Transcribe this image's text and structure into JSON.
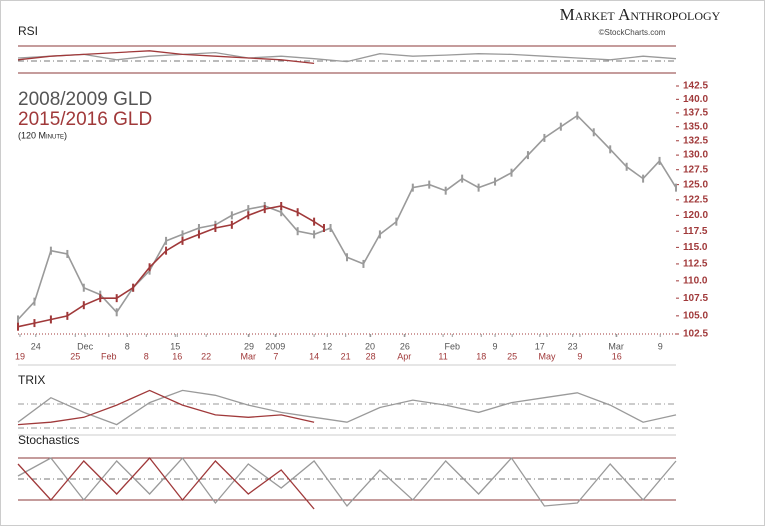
{
  "header": {
    "brand": "Market Anthropology",
    "credit": "©StockCharts.com"
  },
  "chart_data": [
    {
      "type": "line",
      "title": "2008/2009 GLD",
      "subtitle": "2015/2016 GLD",
      "note": "(120 Minute)",
      "log": true,
      "ylim": [
        102.5,
        142.5
      ],
      "yticks": [
        102.5,
        {
          "value": 105,
          "label": "105.0"
        },
        107.5,
        {
          "value": 110,
          "label": "110.0"
        },
        112.5,
        {
          "value": 115,
          "label": "115.0"
        },
        117.5,
        {
          "value": 120,
          "label": "120.0"
        },
        122.5,
        {
          "value": 125,
          "label": "125.0"
        },
        127.5,
        {
          "value": 130,
          "label": "130.0"
        },
        132.5,
        {
          "value": 135,
          "label": "135.0"
        },
        137.5,
        {
          "value": 140,
          "label": "140.0"
        },
        142.5
      ],
      "xlim": [
        0,
        100
      ],
      "xticks": [
        {
          "value": 2.7,
          "label": "24"
        },
        {
          "value": 10.2,
          "label": "Dec"
        },
        {
          "value": 16.6,
          "label": "8"
        },
        {
          "value": 23.9,
          "label": "15"
        },
        {
          "value": 35.1,
          "label": "29"
        },
        {
          "value": 39.1,
          "label": "2009"
        },
        {
          "value": 47,
          "label": "12"
        },
        {
          "value": 53.5,
          "label": "20"
        },
        {
          "value": 58.8,
          "label": "26"
        },
        {
          "value": 66,
          "label": "Feb"
        },
        {
          "value": 72.5,
          "label": "9"
        },
        {
          "value": 79.3,
          "label": "17"
        },
        {
          "value": 84.3,
          "label": "23"
        },
        {
          "value": 90.9,
          "label": "Mar"
        },
        {
          "value": 97.6,
          "label": "9"
        }
      ],
      "x2ticks": [
        {
          "value": 0.3,
          "label": "19"
        },
        {
          "value": 8.7,
          "label": "25"
        },
        {
          "value": 13.8,
          "label": "Feb"
        },
        {
          "value": 19.5,
          "label": "8"
        },
        {
          "value": 24.2,
          "label": "16"
        },
        {
          "value": 28.6,
          "label": "22"
        },
        {
          "value": 35,
          "label": "Mar"
        },
        {
          "value": 39.2,
          "label": "7"
        },
        {
          "value": 45,
          "label": "14"
        },
        {
          "value": 49.8,
          "label": "21"
        },
        {
          "value": 53.6,
          "label": "28"
        },
        {
          "value": 58.7,
          "label": "Apr"
        },
        {
          "value": 64.6,
          "label": "11"
        },
        {
          "value": 70.4,
          "label": "18"
        },
        {
          "value": 75.1,
          "label": "25"
        },
        {
          "value": 80.4,
          "label": "May"
        },
        {
          "value": 85.4,
          "label": "9"
        },
        {
          "value": 91,
          "label": "16"
        }
      ],
      "series": [
        {
          "name": "2008/2009 GLD",
          "color": "#9a9a9a",
          "x": [
            0,
            2.5,
            5,
            7.5,
            10,
            12.5,
            15,
            17.5,
            20,
            22.5,
            25,
            27.5,
            30,
            32.5,
            35,
            37.5,
            40,
            42.5,
            45,
            47.5,
            50,
            52.5,
            55,
            57.5,
            60,
            62.5,
            65,
            67.5,
            70,
            72.5,
            75,
            77.5,
            80,
            82.5,
            85,
            87.5,
            90,
            92.5,
            95,
            97.5,
            100
          ],
          "values": [
            104.5,
            107,
            114.5,
            114,
            109,
            108,
            105.5,
            109,
            111.5,
            116,
            117,
            118,
            118.5,
            120,
            121,
            121.5,
            120.5,
            117.5,
            117,
            118,
            113.5,
            112.5,
            117,
            119,
            124.5,
            125,
            124,
            126,
            124.5,
            125.5,
            127,
            130,
            133,
            135,
            137,
            134,
            131,
            128,
            126,
            129,
            124.5
          ]
        },
        {
          "name": "2015/2016 GLD",
          "color": "#a0393a",
          "x": [
            0,
            2.5,
            5,
            7.5,
            10,
            12.5,
            15,
            17.5,
            20,
            22.5,
            25,
            27.5,
            30,
            32.5,
            35,
            37.5,
            40,
            42.5,
            45,
            46.5
          ],
          "values": [
            103.5,
            104,
            104.5,
            105,
            106.5,
            107.5,
            107.5,
            109,
            112,
            114.5,
            116,
            117,
            118,
            118.5,
            120,
            121,
            121.5,
            120.5,
            119,
            118
          ]
        }
      ]
    },
    {
      "type": "line",
      "title": "RSI",
      "ylim": [
        0,
        100
      ],
      "xlim": [
        0,
        100
      ],
      "series": [
        {
          "color": "#9a9a9a",
          "x": [
            0,
            5,
            10,
            15,
            20,
            25,
            30,
            35,
            40,
            45,
            50,
            55,
            60,
            65,
            70,
            75,
            80,
            85,
            90,
            95,
            100
          ],
          "values": [
            50,
            55,
            60,
            45,
            55,
            60,
            65,
            50,
            55,
            48,
            40,
            62,
            55,
            58,
            62,
            60,
            55,
            50,
            45,
            55,
            48
          ]
        },
        {
          "color": "#a0393a",
          "x": [
            0,
            5,
            10,
            15,
            20,
            25,
            30,
            35,
            40,
            45
          ],
          "values": [
            45,
            55,
            60,
            65,
            70,
            60,
            55,
            50,
            45,
            35
          ]
        }
      ]
    },
    {
      "type": "line",
      "title": "TRIX",
      "ylim": [
        0,
        100
      ],
      "xlim": [
        0,
        100
      ],
      "series": [
        {
          "color": "#9a9a9a",
          "x": [
            0,
            5,
            10,
            15,
            20,
            25,
            30,
            35,
            40,
            45,
            50,
            55,
            60,
            65,
            70,
            75,
            80,
            85,
            90,
            95,
            100
          ],
          "values": [
            20,
            70,
            40,
            15,
            60,
            85,
            75,
            55,
            40,
            30,
            20,
            50,
            65,
            55,
            40,
            60,
            70,
            80,
            55,
            20,
            35
          ]
        },
        {
          "color": "#a0393a",
          "x": [
            0,
            5,
            10,
            15,
            20,
            25,
            30,
            35,
            40,
            45
          ],
          "values": [
            15,
            20,
            30,
            55,
            85,
            55,
            35,
            30,
            35,
            20
          ]
        }
      ]
    },
    {
      "type": "line",
      "title": "Stochastics",
      "ylim": [
        0,
        100
      ],
      "xlim": [
        0,
        100
      ],
      "series": [
        {
          "color": "#9a9a9a",
          "x": [
            0,
            5,
            10,
            15,
            20,
            25,
            30,
            35,
            40,
            45,
            50,
            55,
            60,
            65,
            70,
            75,
            80,
            85,
            90,
            95,
            100
          ],
          "values": [
            60,
            90,
            20,
            85,
            30,
            90,
            15,
            80,
            40,
            85,
            10,
            70,
            20,
            85,
            30,
            90,
            10,
            15,
            80,
            20,
            85
          ]
        },
        {
          "color": "#a0393a",
          "x": [
            0,
            5,
            10,
            15,
            20,
            25,
            30,
            35,
            40,
            45
          ],
          "values": [
            80,
            20,
            85,
            30,
            90,
            20,
            85,
            30,
            70,
            5
          ]
        }
      ]
    }
  ]
}
